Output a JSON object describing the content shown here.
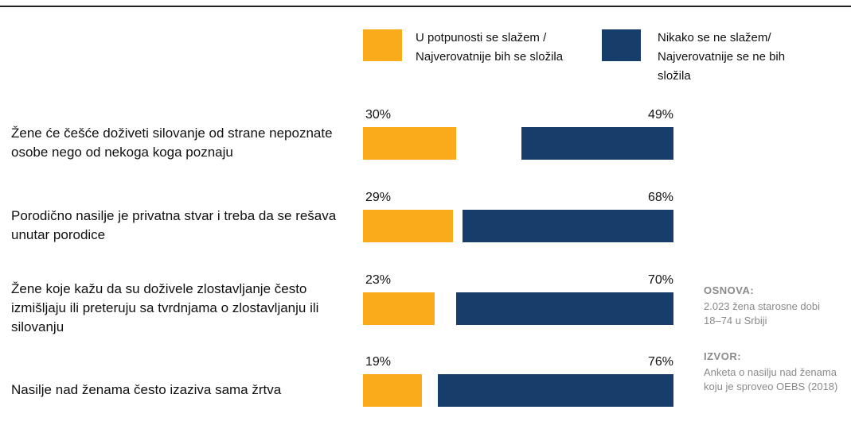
{
  "chart_data": {
    "type": "bar",
    "categories": [
      "Žene će češće doživeti silovanje od strane nepoznate osobe nego od nekoga koga poznaju",
      "Porodično nasilje je privatna stvar i treba da se rešava unutar porodice",
      "Žene koje kažu da su doživele zlostavljanje često izmišljaju ili preteruju sa tvrdnjama o zlostavljanju ili silovanju",
      "Nasilje nad ženama često izaziva sama žrtva"
    ],
    "series": [
      {
        "name": "U potpunosti se slažem / Najverovatnije bih se složila",
        "color": "#f9ab1b",
        "values": [
          30,
          29,
          23,
          19
        ],
        "value_labels": [
          "30%",
          "29%",
          "23%",
          "19%"
        ]
      },
      {
        "name": "Nikako se ne slažem/ Najverovatnije se ne bih složila",
        "color": "#173d6b",
        "values": [
          49,
          68,
          70,
          76
        ],
        "value_labels": [
          "49%",
          "68%",
          "70%",
          "76%"
        ]
      }
    ],
    "notes": [
      {
        "heading": "OSNOVA:",
        "text": "2.023 žena starosne dobi 18–74 u Srbiji"
      },
      {
        "heading": "IZVOR:",
        "text": "Anketa o nasilju nad ženama koju je sproveo OEBS (2018)"
      }
    ]
  }
}
